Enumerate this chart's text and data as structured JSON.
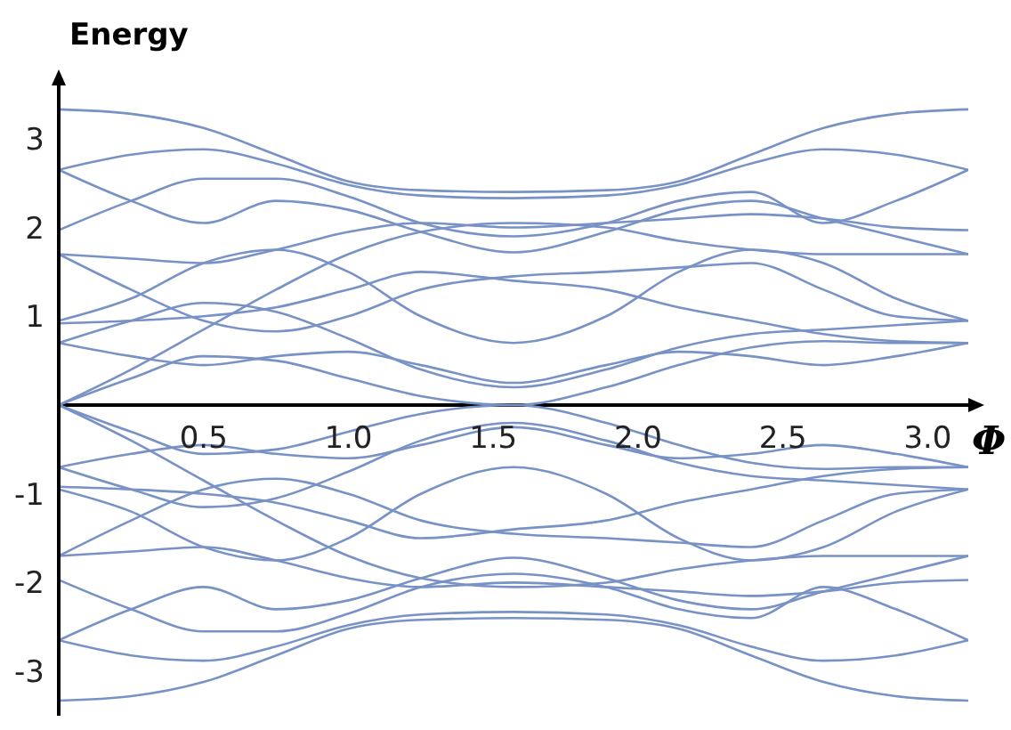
{
  "chart_data": {
    "type": "line",
    "xlabel": "Φ",
    "ylabel": "Energy",
    "x": [
      0,
      0.25,
      0.5,
      0.75,
      1.0,
      1.25,
      1.57,
      1.89,
      2.14,
      2.39,
      2.64,
      2.89,
      3.14
    ],
    "xlim": [
      0,
      3.14
    ],
    "ylim": [
      -3.5,
      3.6
    ],
    "xticks": [
      {
        "value": 0.5,
        "label": "0.5"
      },
      {
        "value": 1,
        "label": "1.0"
      },
      1.5,
      {
        "value": 2,
        "label": "2.0"
      },
      2.5,
      {
        "value": 3,
        "label": "3.0"
      }
    ],
    "yticks": [
      -3,
      -2,
      -1,
      1,
      2,
      3
    ],
    "grid": false,
    "marker": "none",
    "line_style": "solid",
    "series": [
      {
        "color": "#7892c6",
        "values": [
          3.33,
          3.28,
          3.12,
          2.82,
          2.52,
          2.42,
          2.4,
          2.42,
          2.52,
          2.82,
          3.12,
          3.28,
          3.33
        ]
      },
      {
        "color": "#7892c6",
        "values": [
          2.65,
          2.82,
          2.88,
          2.72,
          2.48,
          2.36,
          2.33,
          2.36,
          2.48,
          2.72,
          2.88,
          2.82,
          2.65
        ]
      },
      {
        "color": "#7892c6",
        "values": [
          2.65,
          2.3,
          2.05,
          2.3,
          2.2,
          1.95,
          1.72,
          1.95,
          2.2,
          2.3,
          2.1,
          1.9,
          1.7
        ]
      },
      {
        "color": "#7892c6",
        "values": [
          1.97,
          2.3,
          2.55,
          2.55,
          2.35,
          2.05,
          1.9,
          2.05,
          2.3,
          2.4,
          2.05,
          2.3,
          2.65
        ]
      },
      {
        "color": "#7892c6",
        "values": [
          1.7,
          1.3,
          0.95,
          0.83,
          1.0,
          1.3,
          1.45,
          1.5,
          1.55,
          1.6,
          1.3,
          1.0,
          0.95
        ]
      },
      {
        "color": "#7892c6",
        "values": [
          1.7,
          1.65,
          1.6,
          1.75,
          1.95,
          2.05,
          2.0,
          2.05,
          2.1,
          2.15,
          2.1,
          2.0,
          1.97
        ]
      },
      {
        "color": "#7892c6",
        "values": [
          0.95,
          1.2,
          1.6,
          1.75,
          1.5,
          1.0,
          0.7,
          1.0,
          1.5,
          1.75,
          1.6,
          1.2,
          0.95
        ]
      },
      {
        "color": "#7892c6",
        "values": [
          0.92,
          0.95,
          1.0,
          1.1,
          1.3,
          1.5,
          1.4,
          1.3,
          1.1,
          0.95,
          0.8,
          0.72,
          0.7
        ]
      },
      {
        "color": "#7892c6",
        "values": [
          0.7,
          0.55,
          0.45,
          0.55,
          0.6,
          0.45,
          0.25,
          0.45,
          0.6,
          0.55,
          0.45,
          0.55,
          0.7
        ]
      },
      {
        "color": "#7892c6",
        "values": [
          0.7,
          0.95,
          1.15,
          1.05,
          0.75,
          0.4,
          0.2,
          0.4,
          0.65,
          0.8,
          0.85,
          0.9,
          0.95
        ]
      },
      {
        "color": "#7892c6",
        "values": [
          0,
          0.3,
          0.55,
          0.5,
          0.3,
          0.1,
          0,
          0.2,
          0.45,
          0.65,
          0.72,
          0.7,
          0.7
        ]
      },
      {
        "color": "#7892c6",
        "values": [
          0,
          0.4,
          0.85,
          1.3,
          1.7,
          1.95,
          2.05,
          2.0,
          1.85,
          1.75,
          1.7,
          1.7,
          1.7
        ]
      },
      {
        "color": "#7892c6",
        "values": [
          -3.33,
          -3.28,
          -3.12,
          -2.82,
          -2.52,
          -2.42,
          -2.4,
          -2.42,
          -2.52,
          -2.82,
          -3.12,
          -3.28,
          -3.33
        ]
      },
      {
        "color": "#7892c6",
        "values": [
          -2.65,
          -2.82,
          -2.88,
          -2.72,
          -2.48,
          -2.36,
          -2.33,
          -2.36,
          -2.48,
          -2.72,
          -2.88,
          -2.82,
          -2.65
        ]
      },
      {
        "color": "#7892c6",
        "values": [
          -2.65,
          -2.3,
          -2.05,
          -2.3,
          -2.2,
          -1.95,
          -1.72,
          -1.95,
          -2.2,
          -2.3,
          -2.1,
          -1.9,
          -1.7
        ]
      },
      {
        "color": "#7892c6",
        "values": [
          -1.97,
          -2.3,
          -2.55,
          -2.55,
          -2.35,
          -2.05,
          -1.9,
          -2.05,
          -2.3,
          -2.4,
          -2.05,
          -2.3,
          -2.65
        ]
      },
      {
        "color": "#7892c6",
        "values": [
          -1.7,
          -1.3,
          -0.95,
          -0.83,
          -1.0,
          -1.3,
          -1.45,
          -1.5,
          -1.55,
          -1.6,
          -1.3,
          -1.0,
          -0.95
        ]
      },
      {
        "color": "#7892c6",
        "values": [
          -1.7,
          -1.65,
          -1.6,
          -1.75,
          -1.95,
          -2.05,
          -2.0,
          -2.05,
          -2.1,
          -2.15,
          -2.1,
          -2.0,
          -1.97
        ]
      },
      {
        "color": "#7892c6",
        "values": [
          -0.95,
          -1.2,
          -1.6,
          -1.75,
          -1.5,
          -1.0,
          -0.7,
          -1.0,
          -1.5,
          -1.75,
          -1.6,
          -1.2,
          -0.95
        ]
      },
      {
        "color": "#7892c6",
        "values": [
          -0.92,
          -0.95,
          -1.0,
          -1.1,
          -1.3,
          -1.5,
          -1.4,
          -1.3,
          -1.1,
          -0.95,
          -0.8,
          -0.72,
          -0.7
        ]
      },
      {
        "color": "#7892c6",
        "values": [
          -0.7,
          -0.55,
          -0.45,
          -0.55,
          -0.6,
          -0.45,
          -0.25,
          -0.45,
          -0.6,
          -0.55,
          -0.45,
          -0.55,
          -0.7
        ]
      },
      {
        "color": "#7892c6",
        "values": [
          -0.7,
          -0.95,
          -1.15,
          -1.05,
          -0.75,
          -0.4,
          -0.2,
          -0.4,
          -0.65,
          -0.8,
          -0.85,
          -0.9,
          -0.95
        ]
      },
      {
        "color": "#7892c6",
        "values": [
          0,
          -0.3,
          -0.55,
          -0.5,
          -0.3,
          -0.1,
          0,
          -0.2,
          -0.45,
          -0.65,
          -0.72,
          -0.7,
          -0.7
        ]
      },
      {
        "color": "#7892c6",
        "values": [
          0,
          -0.4,
          -0.85,
          -1.3,
          -1.7,
          -1.95,
          -2.05,
          -2.0,
          -1.85,
          -1.75,
          -1.7,
          -1.7,
          -1.7
        ]
      }
    ]
  }
}
